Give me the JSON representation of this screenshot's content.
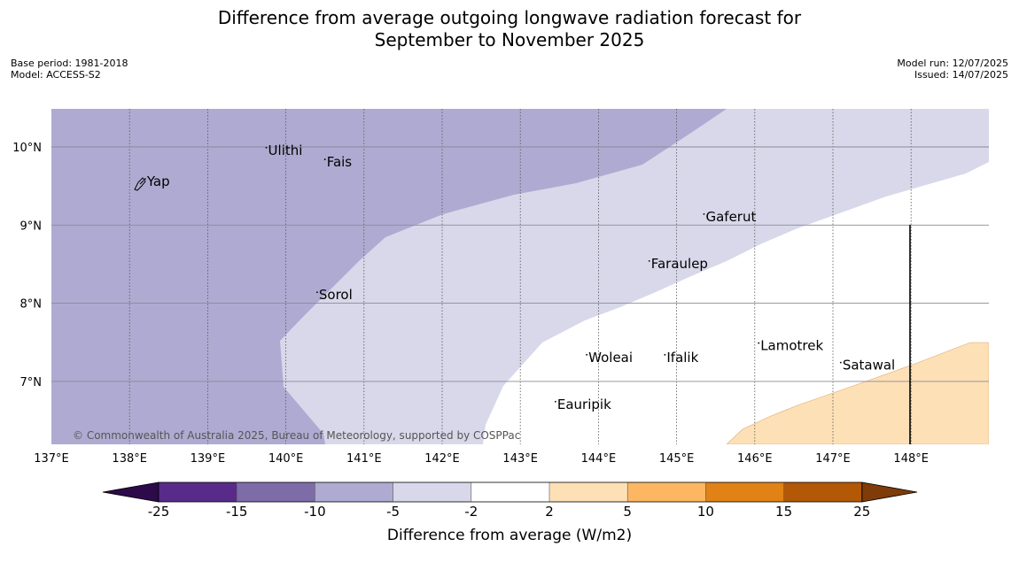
{
  "title_line1": "Difference from average outgoing longwave radiation forecast for",
  "title_line2": "September to November 2025",
  "meta_left": {
    "base_period": "Base period: 1981-2018",
    "model": "Model: ACCESS-S2"
  },
  "meta_right": {
    "model_run": "Model run: 12/07/2025",
    "issued": "Issued: 14/07/2025"
  },
  "map": {
    "lon_range": [
      137,
      149
    ],
    "lat_range": [
      6.2,
      10.5
    ],
    "lon_ticks": [
      "137°E",
      "138°E",
      "139°E",
      "140°E",
      "141°E",
      "142°E",
      "143°E",
      "144°E",
      "145°E",
      "146°E",
      "147°E",
      "148°E"
    ],
    "lat_ticks": [
      "10°N",
      "9°N",
      "8°N",
      "7°N"
    ],
    "copyright": "© Commonwealth of Australia 2025, Bureau of Meteorology, supported by COSPPac",
    "places": [
      {
        "name": "Ulithi",
        "lon": 139.75,
        "lat": 9.9
      },
      {
        "name": "Fais",
        "lon": 140.5,
        "lat": 9.75
      },
      {
        "name": "Yap",
        "lon": 138.2,
        "lat": 9.5
      },
      {
        "name": "Gaferut",
        "lon": 145.35,
        "lat": 9.05
      },
      {
        "name": "Faraulep",
        "lon": 144.65,
        "lat": 8.45
      },
      {
        "name": "Sorol",
        "lon": 140.4,
        "lat": 8.05
      },
      {
        "name": "Lamotrek",
        "lon": 146.05,
        "lat": 7.4
      },
      {
        "name": "Woleai",
        "lon": 143.85,
        "lat": 7.25
      },
      {
        "name": "Ifalik",
        "lon": 144.85,
        "lat": 7.25
      },
      {
        "name": "Satawal",
        "lon": 147.1,
        "lat": 7.15
      },
      {
        "name": "Eauripik",
        "lon": 143.45,
        "lat": 6.65
      }
    ]
  },
  "colorbar": {
    "ticks": [
      "-25",
      "-15",
      "-10",
      "-5",
      "-2",
      "2",
      "5",
      "10",
      "15",
      "25"
    ],
    "colors": [
      "#582b8b",
      "#7e6ca9",
      "#afaad1",
      "#d8d8ea",
      "#ffffff",
      "#fde0b6",
      "#fdb762",
      "#e08215",
      "#b35806"
    ],
    "under_color": "#2d0a4a",
    "over_color": "#7f3b08",
    "label": "Difference from average (W/m2)"
  },
  "map_regions": {
    "strong_neg_color": "#afaad1",
    "weak_neg_color": "#d8d8ea",
    "weak_pos_color": "#fde0b6"
  }
}
